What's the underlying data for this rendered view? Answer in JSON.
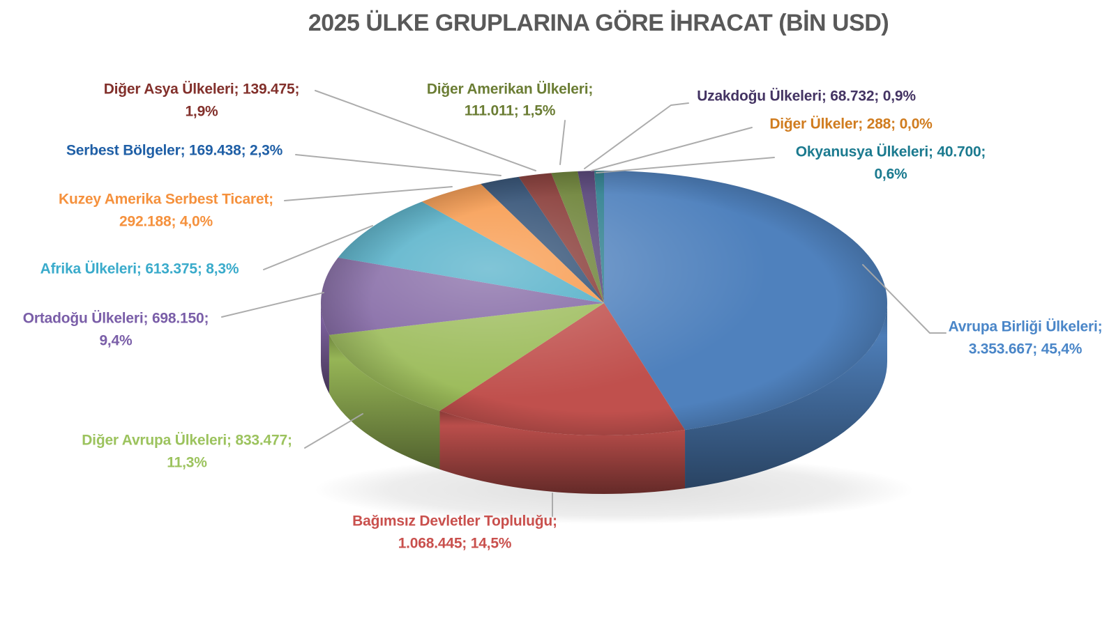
{
  "title": "2025 ÜLKE GRUPLARINA GÖRE İHRACAT (BİN USD)",
  "title_color": "#595959",
  "leader_line_color": "#A8A8A8",
  "chart_data": {
    "type": "pie",
    "style": "3d",
    "title": "2025 ÜLKE GRUPLARINA GÖRE İHRACAT (BİN USD)",
    "unit": "BİN USD",
    "legend_position": "none",
    "label_format": "name; value; percent",
    "start_angle_deg": 0,
    "direction": "clockwise",
    "series": [
      {
        "id": "avrupa-birligi",
        "name": "Avrupa Birliği Ülkeleri",
        "value": 3353667,
        "value_label": "3.353.667",
        "percent_label": "45,4%",
        "color": "#4F81BD",
        "text_color": "#4A86C8",
        "label_lines": [
          "Avrupa Birliği Ülkeleri;",
          "3.353.667; 45,4%"
        ]
      },
      {
        "id": "bagimsiz-devletler",
        "name": "Bağımsız Devletler Topluluğu",
        "value": 1068445,
        "value_label": "1.068.445",
        "percent_label": "14,5%",
        "color": "#C0504D",
        "text_color": "#C9504D",
        "label_lines": [
          "Bağımsız Devletler Topluluğu;",
          "1.068.445; 14,5%"
        ]
      },
      {
        "id": "diger-avrupa",
        "name": "Diğer Avrupa Ülkeleri",
        "value": 833477,
        "value_label": "833.477",
        "percent_label": "11,3%",
        "color": "#9BBB59",
        "text_color": "#9CC35E",
        "label_lines": [
          "Diğer Avrupa Ülkeleri; 833.477;",
          "11,3%"
        ]
      },
      {
        "id": "ortadogu",
        "name": "Ortadoğu Ülkeleri",
        "value": 698150,
        "value_label": "698.150",
        "percent_label": "9,4%",
        "color": "#8064A2",
        "text_color": "#7A5EA8",
        "label_lines": [
          "Ortadoğu Ülkeleri; 698.150;",
          "9,4%"
        ]
      },
      {
        "id": "afrika",
        "name": "Afrika Ülkeleri",
        "value": 613375,
        "value_label": "613.375",
        "percent_label": "8,3%",
        "color": "#4BACC6",
        "text_color": "#3AABCB",
        "label_lines": [
          "Afrika Ülkeleri; 613.375; 8,3%"
        ]
      },
      {
        "id": "kuzey-amerika",
        "name": "Kuzey Amerika Serbest Ticaret",
        "value": 292188,
        "value_label": "292.188",
        "percent_label": "4,0%",
        "color": "#F79646",
        "text_color": "#F5913D",
        "label_lines": [
          "Kuzey Amerika Serbest Ticaret;",
          "292.188; 4,0%"
        ]
      },
      {
        "id": "serbest-bolgeler",
        "name": "Serbest Bölgeler",
        "value": 169438,
        "value_label": "169.438",
        "percent_label": "2,3%",
        "color": "#2A4A70",
        "text_color": "#1F5FA6",
        "label_lines": [
          "Serbest Bölgeler; 169.438; 2,3%"
        ]
      },
      {
        "id": "diger-asya",
        "name": "Diğer Asya Ülkeleri",
        "value": 139475,
        "value_label": "139.475",
        "percent_label": "1,9%",
        "color": "#853632",
        "text_color": "#82302B",
        "label_lines": [
          "Diğer Asya Ülkeleri; 139.475;",
          "1,9%"
        ]
      },
      {
        "id": "diger-amerikan",
        "name": "Diğer Amerikan Ülkeleri",
        "value": 111011,
        "value_label": "111.011",
        "percent_label": "1,5%",
        "color": "#6A8034",
        "text_color": "#6B7D34",
        "label_lines": [
          "Diğer Amerikan Ülkeleri;",
          "111.011; 1,5%"
        ]
      },
      {
        "id": "uzakdogu",
        "name": "Uzakdoğu Ülkeleri",
        "value": 68732,
        "value_label": "68.732",
        "percent_label": "0,9%",
        "color": "#554277",
        "text_color": "#443463",
        "label_lines": [
          "Uzakdoğu Ülkeleri; 68.732; 0,9%"
        ]
      },
      {
        "id": "diger-ulkeler",
        "name": "Diğer Ülkeler",
        "value": 288,
        "value_label": "288",
        "percent_label": "0,0%",
        "color": "#B65708",
        "text_color": "#D07C1F",
        "label_lines": [
          "Diğer Ülkeler; 288; 0,0%"
        ]
      },
      {
        "id": "okyanusya",
        "name": "Okyanusya Ülkeleri",
        "value": 40700,
        "value_label": "40.700",
        "percent_label": "0,6%",
        "color": "#2E7F8E",
        "text_color": "#1B7A8F",
        "label_lines": [
          "Okyanusya Ülkeleri; 40.700;",
          "0,6%"
        ]
      }
    ]
  }
}
